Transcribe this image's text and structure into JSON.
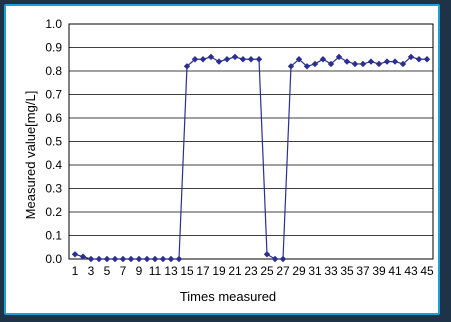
{
  "chart_data": {
    "type": "line",
    "title": "",
    "xlabel": "Times measured",
    "ylabel": "Measured value[mg/L]",
    "ylim": [
      0,
      1.0
    ],
    "yticks": [
      "0.0",
      "0.1",
      "0.2",
      "0.3",
      "0.4",
      "0.5",
      "0.6",
      "0.7",
      "0.8",
      "0.9",
      "1.0"
    ],
    "xlim": [
      1,
      45
    ],
    "xticks": [
      "1",
      "3",
      "5",
      "7",
      "9",
      "11",
      "13",
      "15",
      "17",
      "19",
      "21",
      "23",
      "25",
      "27",
      "29",
      "31",
      "33",
      "35",
      "37",
      "39",
      "41",
      "43",
      "45"
    ],
    "grid": "horizontal",
    "series": [
      {
        "color": "#2b2f8f",
        "marker": "diamond",
        "x": [
          1,
          2,
          3,
          4,
          5,
          6,
          7,
          8,
          9,
          10,
          11,
          12,
          13,
          14,
          15,
          16,
          17,
          18,
          19,
          20,
          21,
          22,
          23,
          24,
          25,
          26,
          27,
          28,
          29,
          30,
          31,
          32,
          33,
          34,
          35,
          36,
          37,
          38,
          39,
          40,
          41,
          42,
          43,
          44,
          45
        ],
        "values": [
          0.02,
          0.01,
          0.0,
          0.0,
          0.0,
          0.0,
          0.0,
          0.0,
          0.0,
          0.0,
          0.0,
          0.0,
          0.0,
          0.0,
          0.82,
          0.85,
          0.85,
          0.86,
          0.84,
          0.85,
          0.86,
          0.85,
          0.85,
          0.85,
          0.02,
          0.0,
          0.0,
          0.82,
          0.85,
          0.82,
          0.83,
          0.85,
          0.83,
          0.86,
          0.84,
          0.83,
          0.83,
          0.84,
          0.83,
          0.84,
          0.84,
          0.83,
          0.86,
          0.85,
          0.85
        ]
      }
    ]
  }
}
